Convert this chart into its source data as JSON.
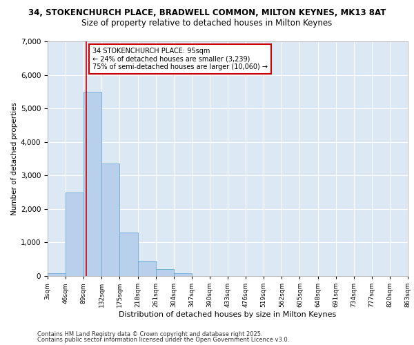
{
  "title_line1": "34, STOKENCHURCH PLACE, BRADWELL COMMON, MILTON KEYNES, MK13 8AT",
  "title_line2": "Size of property relative to detached houses in Milton Keynes",
  "xlabel": "Distribution of detached houses by size in Milton Keynes",
  "ylabel": "Number of detached properties",
  "bin_edges": [
    3,
    46,
    89,
    132,
    175,
    218,
    261,
    304,
    347,
    390,
    433,
    476,
    519,
    562,
    605,
    648,
    691,
    734,
    777,
    820,
    863
  ],
  "bar_heights": [
    90,
    2500,
    5500,
    3350,
    1300,
    450,
    200,
    80,
    0,
    0,
    0,
    0,
    0,
    0,
    0,
    0,
    0,
    0,
    0,
    0
  ],
  "bar_color": "#b8d0eb",
  "bar_edge_color": "#6aabd2",
  "vline_x": 95,
  "vline_color": "#cc0000",
  "annotation_text": "34 STOKENCHURCH PLACE: 95sqm\n← 24% of detached houses are smaller (3,239)\n75% of semi-detached houses are larger (10,060) →",
  "annotation_box_color": "#ffffff",
  "annotation_box_edge": "#cc0000",
  "ylim": [
    0,
    7000
  ],
  "yticks": [
    0,
    1000,
    2000,
    3000,
    4000,
    5000,
    6000,
    7000
  ],
  "bg_color": "#dde8f5",
  "grid_color": "#ffffff",
  "footer_line1": "Contains HM Land Registry data © Crown copyright and database right 2025.",
  "footer_line2": "Contains public sector information licensed under the Open Government Licence v3.0."
}
